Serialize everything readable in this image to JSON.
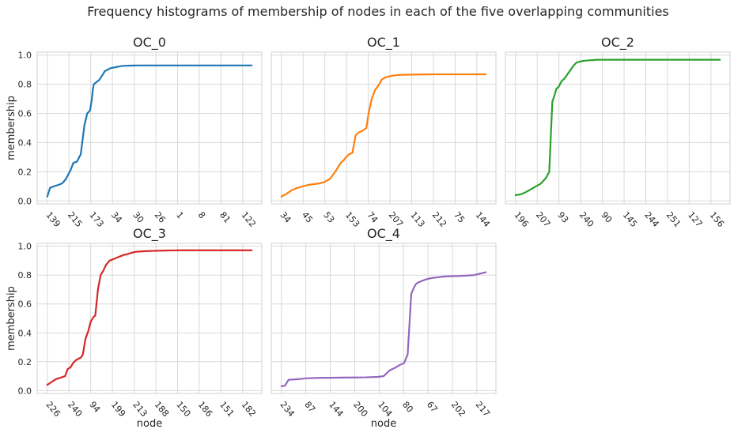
{
  "figure": {
    "title": "Frequency histograms of membership of nodes in each of the five overlapping communities"
  },
  "chart_data": [
    {
      "type": "line",
      "title": "OC_0",
      "xlabel": "",
      "ylabel": "membership",
      "ylim": [
        -0.02,
        1.02
      ],
      "yticks": [
        "0.0",
        "0.2",
        "0.4",
        "0.6",
        "0.8",
        "1.0"
      ],
      "xticks": [
        "139",
        "215",
        "173",
        "34",
        "30",
        "26",
        "1",
        "8",
        "81",
        "122"
      ],
      "color": "#1f77b4",
      "x": [
        0,
        0.3,
        0.7,
        1.2,
        1.6,
        2.0,
        2.5,
        2.8,
        3.2,
        3.6,
        4.0,
        4.3,
        4.6,
        4.8,
        4.9,
        5.0,
        5.2,
        5.6,
        5.9,
        6.2,
        6.5,
        6.8,
        7.2,
        7.6,
        8.0,
        8.5,
        9.0,
        10.0,
        11.0,
        12.0,
        13.0,
        14.0,
        15.0,
        16.0,
        17.0,
        18.0,
        19.0,
        20.0,
        21.0,
        22.0
      ],
      "values": [
        0.03,
        0.09,
        0.1,
        0.11,
        0.12,
        0.15,
        0.21,
        0.26,
        0.27,
        0.32,
        0.52,
        0.6,
        0.62,
        0.7,
        0.76,
        0.8,
        0.81,
        0.83,
        0.86,
        0.89,
        0.9,
        0.91,
        0.915,
        0.92,
        0.925,
        0.927,
        0.928,
        0.929,
        0.929,
        0.929,
        0.929,
        0.929,
        0.929,
        0.929,
        0.929,
        0.929,
        0.929,
        0.929,
        0.929,
        0.929
      ]
    },
    {
      "type": "line",
      "title": "OC_1",
      "xlabel": "",
      "ylabel": "",
      "ylim": [
        -0.02,
        1.02
      ],
      "yticks": [
        "0.0",
        "0.2",
        "0.4",
        "0.6",
        "0.8",
        "1.0"
      ],
      "xticks": [
        "34",
        "45",
        "53",
        "153",
        "74",
        "207",
        "113",
        "212",
        "75",
        "144"
      ],
      "color": "#ff7f0e",
      "x": [
        0,
        0.5,
        1.0,
        1.5,
        2.0,
        2.5,
        3.0,
        3.5,
        4.0,
        4.5,
        5.0,
        5.5,
        5.8,
        6.0,
        6.3,
        6.6,
        6.9,
        7.2,
        7.5,
        7.7,
        7.9,
        8.1,
        8.4,
        8.7,
        8.9,
        9.1,
        9.3,
        9.5,
        9.8,
        10.1,
        10.4,
        10.7,
        11.0,
        11.5,
        12.0,
        13.0,
        14.0,
        15.0,
        16.0,
        17.0,
        18.0,
        19.0
      ],
      "values": [
        0.03,
        0.05,
        0.075,
        0.09,
        0.1,
        0.11,
        0.115,
        0.12,
        0.13,
        0.15,
        0.2,
        0.26,
        0.28,
        0.3,
        0.32,
        0.33,
        0.45,
        0.47,
        0.48,
        0.49,
        0.5,
        0.6,
        0.7,
        0.76,
        0.78,
        0.8,
        0.83,
        0.84,
        0.85,
        0.855,
        0.86,
        0.862,
        0.864,
        0.865,
        0.866,
        0.867,
        0.868,
        0.868,
        0.868,
        0.868,
        0.868,
        0.868
      ]
    },
    {
      "type": "line",
      "title": "OC_2",
      "xlabel": "",
      "ylabel": "",
      "ylim": [
        -0.02,
        1.02
      ],
      "yticks": [
        "0.0",
        "0.2",
        "0.4",
        "0.6",
        "0.8",
        "1.0"
      ],
      "xticks": [
        "196",
        "207",
        "93",
        "240",
        "90",
        "145",
        "244",
        "251",
        "127",
        "156"
      ],
      "color": "#2ca02c",
      "x": [
        0,
        0.5,
        1.0,
        1.5,
        2.0,
        2.5,
        3.0,
        3.3,
        3.6,
        3.8,
        4.0,
        4.2,
        4.5,
        4.8,
        5.1,
        5.4,
        5.7,
        6.0,
        6.3,
        6.6,
        6.9,
        7.2,
        7.6,
        8.0,
        9.0,
        10.0,
        11.0,
        12.0,
        13.0,
        14.0,
        15.0,
        16.0,
        17.0,
        18.0,
        19.0,
        20.0
      ],
      "values": [
        0.04,
        0.045,
        0.06,
        0.08,
        0.1,
        0.12,
        0.16,
        0.2,
        0.68,
        0.72,
        0.77,
        0.78,
        0.82,
        0.84,
        0.87,
        0.9,
        0.93,
        0.95,
        0.955,
        0.96,
        0.962,
        0.964,
        0.966,
        0.968,
        0.968,
        0.968,
        0.968,
        0.968,
        0.968,
        0.968,
        0.968,
        0.968,
        0.968,
        0.968,
        0.968,
        0.968
      ]
    },
    {
      "type": "line",
      "title": "OC_3",
      "xlabel": "node",
      "ylabel": "membership",
      "ylim": [
        -0.02,
        1.02
      ],
      "yticks": [
        "0.0",
        "0.2",
        "0.4",
        "0.6",
        "0.8",
        "1.0"
      ],
      "xticks": [
        "226",
        "240",
        "94",
        "199",
        "213",
        "188",
        "150",
        "186",
        "151",
        "182"
      ],
      "color": "#d62728",
      "x": [
        0,
        0.5,
        1.0,
        1.5,
        2.0,
        2.3,
        2.6,
        2.9,
        3.2,
        3.5,
        3.8,
        4.0,
        4.3,
        4.6,
        4.9,
        5.2,
        5.4,
        5.7,
        6.0,
        6.3,
        6.6,
        7.0,
        7.4,
        7.8,
        8.2,
        8.6,
        9.0,
        9.5,
        10.0,
        11.0,
        12.0,
        13.0,
        14.0,
        15.0,
        16.0,
        17.0,
        18.0,
        19.0,
        20.0,
        21.0,
        22.0,
        23.0
      ],
      "values": [
        0.04,
        0.06,
        0.08,
        0.09,
        0.1,
        0.15,
        0.16,
        0.19,
        0.21,
        0.22,
        0.23,
        0.25,
        0.36,
        0.41,
        0.48,
        0.51,
        0.52,
        0.7,
        0.8,
        0.83,
        0.87,
        0.9,
        0.91,
        0.92,
        0.93,
        0.94,
        0.945,
        0.955,
        0.962,
        0.966,
        0.968,
        0.97,
        0.971,
        0.972,
        0.972,
        0.972,
        0.972,
        0.972,
        0.972,
        0.972,
        0.972,
        0.972
      ]
    },
    {
      "type": "line",
      "title": "OC_4",
      "xlabel": "node",
      "ylabel": "",
      "ylim": [
        -0.02,
        1.02
      ],
      "yticks": [
        "0.0",
        "0.2",
        "0.4",
        "0.6",
        "0.8",
        "1.0"
      ],
      "xticks": [
        "234",
        "87",
        "144",
        "200",
        "104",
        "80",
        "67",
        "202",
        "217"
      ],
      "color": "#9467bd",
      "x": [
        0,
        0.3,
        0.6,
        1.0,
        1.5,
        2.0,
        3.0,
        4.0,
        5.0,
        6.0,
        7.0,
        8.0,
        8.5,
        9.0,
        9.5,
        9.9,
        10.2,
        10.5,
        10.8,
        11.0,
        11.2,
        11.4,
        11.7,
        12.0,
        12.5,
        13.0,
        13.5,
        14.0,
        15.0,
        16.0,
        16.5,
        17.0
      ],
      "values": [
        0.03,
        0.035,
        0.075,
        0.077,
        0.08,
        0.085,
        0.088,
        0.089,
        0.09,
        0.091,
        0.092,
        0.095,
        0.1,
        0.14,
        0.16,
        0.18,
        0.19,
        0.25,
        0.67,
        0.71,
        0.74,
        0.75,
        0.76,
        0.77,
        0.78,
        0.785,
        0.79,
        0.792,
        0.795,
        0.8,
        0.81,
        0.82
      ]
    }
  ]
}
